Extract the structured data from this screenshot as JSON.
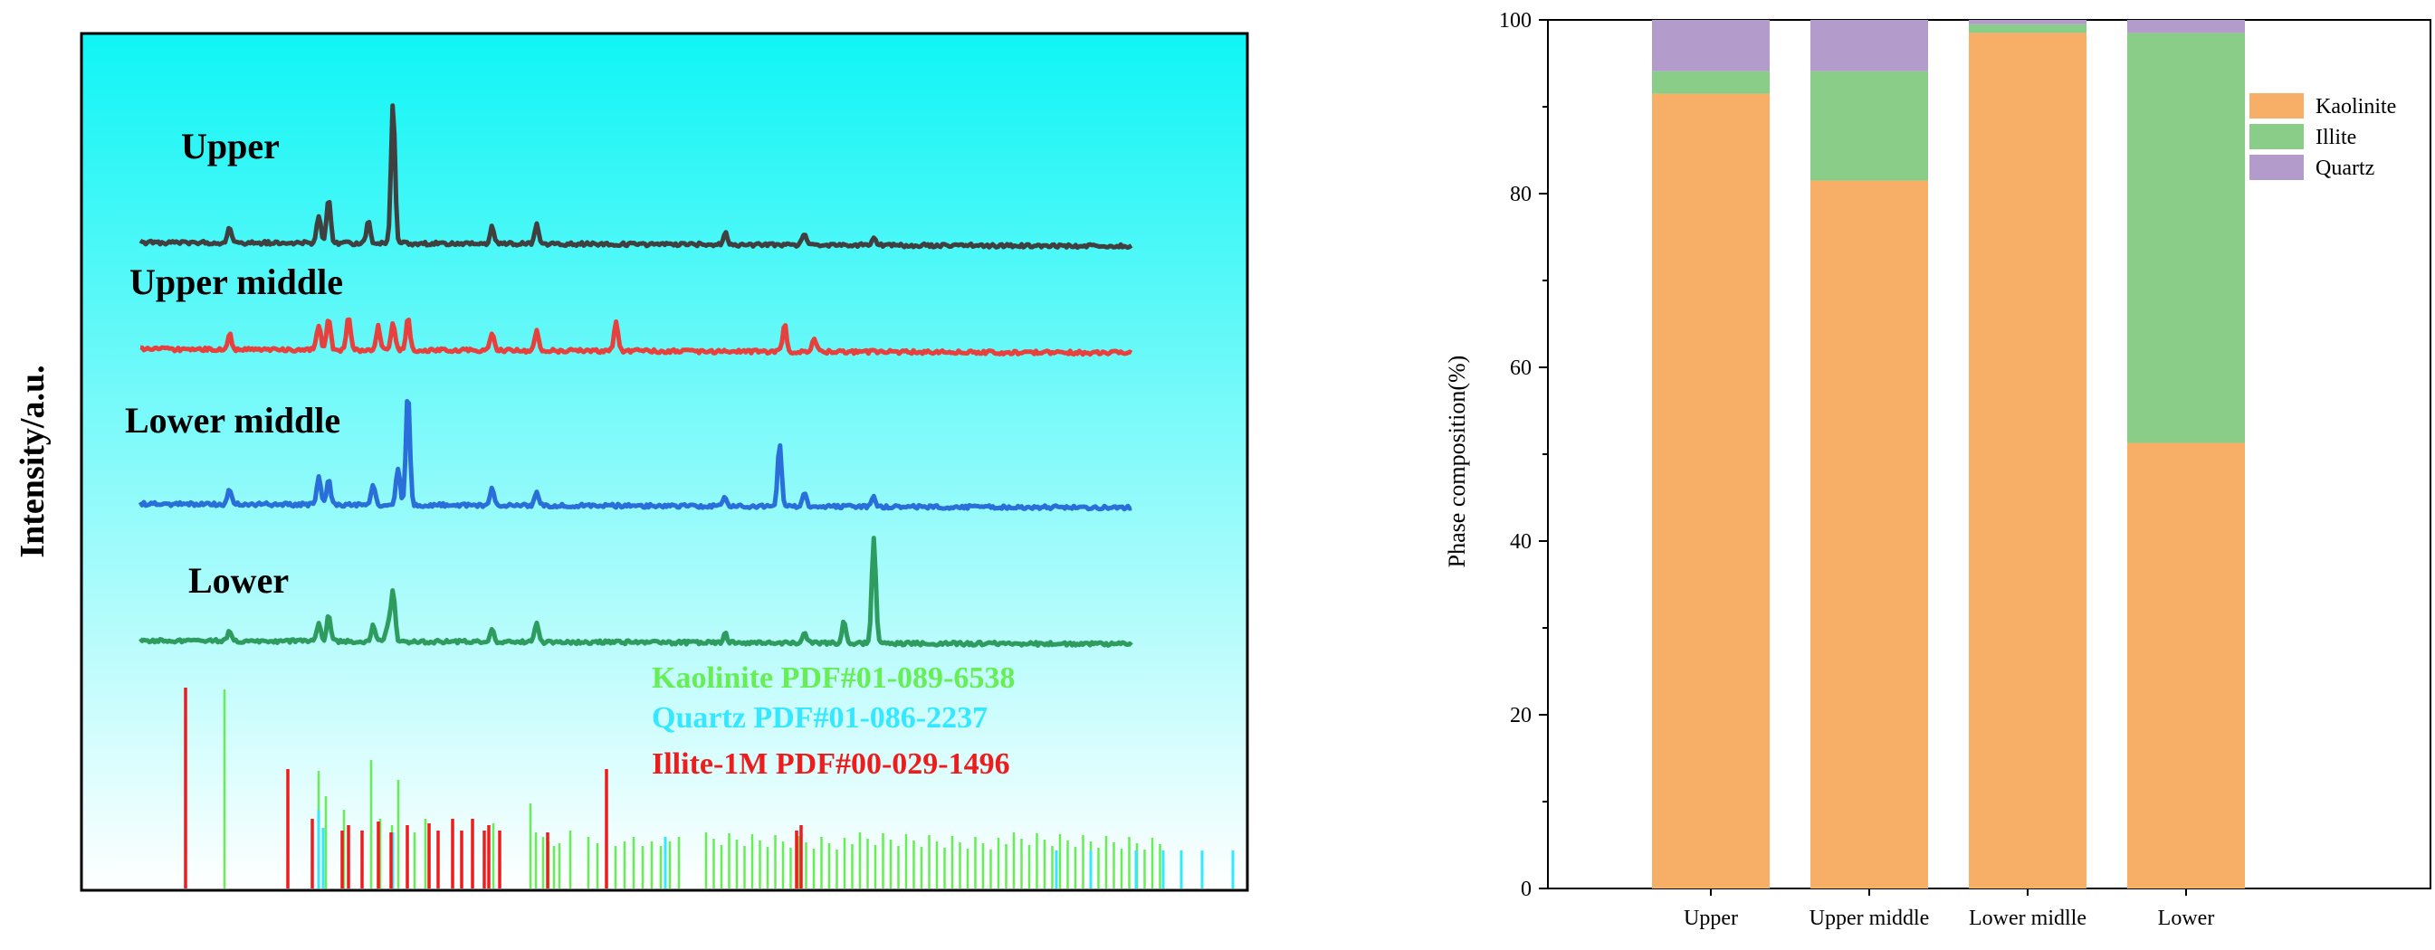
{
  "chart_data": [
    {
      "type": "line",
      "title": "",
      "ylabel": "Intensity/a.u.",
      "xlabel": "",
      "grid": false,
      "background": "gradient cyan-to-white",
      "series": [
        {
          "name": "Upper",
          "color": "#404040",
          "peaks": [
            [
              0.09,
              18
            ],
            [
              0.18,
              30
            ],
            [
              0.19,
              50
            ],
            [
              0.23,
              24
            ],
            [
              0.255,
              155
            ],
            [
              0.355,
              20
            ],
            [
              0.4,
              22
            ],
            [
              0.59,
              14
            ],
            [
              0.67,
              12
            ],
            [
              0.74,
              10
            ]
          ]
        },
        {
          "name": "Upper middle",
          "color": "#e8403c",
          "peaks": [
            [
              0.09,
              18
            ],
            [
              0.18,
              28
            ],
            [
              0.19,
              36
            ],
            [
              0.21,
              38
            ],
            [
              0.24,
              26
            ],
            [
              0.255,
              30
            ],
            [
              0.27,
              36
            ],
            [
              0.355,
              18
            ],
            [
              0.4,
              22
            ],
            [
              0.48,
              34
            ],
            [
              0.65,
              30
            ],
            [
              0.68,
              16
            ]
          ]
        },
        {
          "name": "Lower middle",
          "color": "#2a6fd9",
          "peaks": [
            [
              0.09,
              16
            ],
            [
              0.18,
              30
            ],
            [
              0.19,
              28
            ],
            [
              0.235,
              22
            ],
            [
              0.26,
              40
            ],
            [
              0.27,
              125
            ],
            [
              0.355,
              18
            ],
            [
              0.4,
              14
            ],
            [
              0.59,
              10
            ],
            [
              0.645,
              70
            ],
            [
              0.67,
              14
            ],
            [
              0.74,
              10
            ]
          ]
        },
        {
          "name": "Lower",
          "color": "#2e9c5e",
          "peaks": [
            [
              0.09,
              12
            ],
            [
              0.18,
              20
            ],
            [
              0.19,
              30
            ],
            [
              0.235,
              18
            ],
            [
              0.25,
              20
            ],
            [
              0.255,
              58
            ],
            [
              0.355,
              16
            ],
            [
              0.4,
              20
            ],
            [
              0.59,
              10
            ],
            [
              0.67,
              10
            ],
            [
              0.71,
              24
            ],
            [
              0.74,
              115
            ]
          ]
        }
      ],
      "reference_patterns": [
        {
          "label": "Kaolinite PDF#01-089-6538",
          "color": "#66ee55"
        },
        {
          "label": "Quartz PDF#01-086-2237",
          "color": "#33e8ff"
        },
        {
          "label": "Illite-1M PDF#00-029-1496",
          "color": "#ee1c1c"
        }
      ]
    },
    {
      "type": "bar",
      "stacked": true,
      "title": "",
      "xlabel": "",
      "ylabel": "Phase composition(%)",
      "ylim": [
        0,
        100
      ],
      "yticks": [
        0,
        20,
        40,
        60,
        80,
        100
      ],
      "categories": [
        "Upper",
        "Upper middle",
        "Lower midlle",
        "Lower"
      ],
      "series": [
        {
          "name": "Kaolinite",
          "color": "#f7ae67",
          "values": [
            91.5,
            81.5,
            98.5,
            51.3
          ]
        },
        {
          "name": "Illite",
          "color": "#8acd89",
          "values": [
            2.6,
            12.6,
            1.0,
            47.2
          ]
        },
        {
          "name": "Quartz",
          "color": "#b39bcc",
          "values": [
            5.9,
            5.9,
            0.5,
            1.5
          ]
        }
      ],
      "legend": "top-right"
    }
  ]
}
